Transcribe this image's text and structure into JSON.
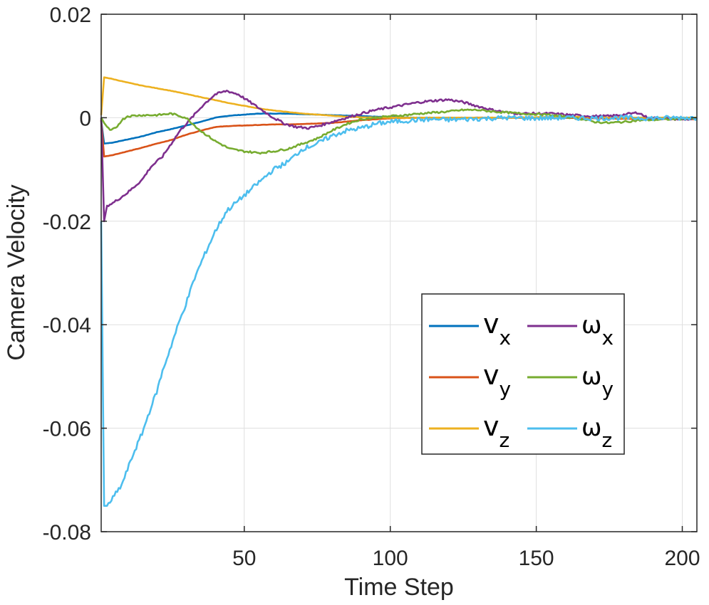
{
  "chart_data": {
    "type": "line",
    "title": "",
    "xlabel": "Time Step",
    "ylabel": "Camera Velocity",
    "xlim": [
      1,
      205
    ],
    "ylim": [
      -0.08,
      0.02
    ],
    "xticks": [
      50,
      100,
      150,
      200
    ],
    "xtick_labels": [
      "50",
      "100",
      "150",
      "200"
    ],
    "yticks": [
      0.02,
      0,
      -0.02,
      -0.04,
      -0.06,
      -0.08
    ],
    "ytick_labels": [
      "0.02",
      "0",
      "-0.02",
      "-0.04",
      "-0.06",
      "-0.08"
    ],
    "grid": true,
    "legend_position": "lower-right",
    "legend_columns": 2,
    "series": [
      {
        "name": "v_x",
        "symbol": "v",
        "subscript": "x",
        "color": "#0072BD",
        "points": [
          [
            1,
            -0.0005
          ],
          [
            2,
            -0.005
          ],
          [
            5,
            -0.0048
          ],
          [
            10,
            -0.0042
          ],
          [
            15,
            -0.0036
          ],
          [
            20,
            -0.0028
          ],
          [
            25,
            -0.0022
          ],
          [
            30,
            -0.0015
          ],
          [
            35,
            -0.0008
          ],
          [
            40,
            0.0
          ],
          [
            45,
            0.0004
          ],
          [
            50,
            0.0006
          ],
          [
            55,
            0.0008
          ],
          [
            60,
            0.0008
          ],
          [
            65,
            0.0008
          ],
          [
            70,
            0.0007
          ],
          [
            80,
            0.0005
          ],
          [
            90,
            0.0003
          ],
          [
            100,
            0.0001
          ],
          [
            110,
            0.0
          ],
          [
            120,
            0.0
          ],
          [
            130,
            0.0
          ],
          [
            140,
            0.0
          ],
          [
            150,
            0.0
          ],
          [
            160,
            0.0
          ],
          [
            170,
            0.0
          ],
          [
            180,
            0.0
          ],
          [
            190,
            0.0
          ],
          [
            200,
            0.0
          ],
          [
            205,
            0.0
          ]
        ]
      },
      {
        "name": "v_y",
        "symbol": "v",
        "subscript": "y",
        "color": "#D95319",
        "points": [
          [
            1,
            -0.0005
          ],
          [
            2,
            -0.0075
          ],
          [
            5,
            -0.0072
          ],
          [
            10,
            -0.0065
          ],
          [
            15,
            -0.0058
          ],
          [
            20,
            -0.005
          ],
          [
            25,
            -0.0043
          ],
          [
            30,
            -0.0033
          ],
          [
            35,
            -0.0025
          ],
          [
            40,
            -0.0018
          ],
          [
            45,
            -0.0016
          ],
          [
            50,
            -0.0015
          ],
          [
            55,
            -0.0014
          ],
          [
            60,
            -0.0013
          ],
          [
            65,
            -0.0013
          ],
          [
            70,
            -0.0012
          ],
          [
            80,
            -0.001
          ],
          [
            90,
            -0.0005
          ],
          [
            100,
            -0.0001
          ],
          [
            110,
            0.0
          ],
          [
            120,
            0.0
          ],
          [
            130,
            0.0
          ],
          [
            140,
            0.0
          ],
          [
            150,
            0.0
          ],
          [
            160,
            0.0
          ],
          [
            170,
            -0.0001
          ],
          [
            180,
            -0.0002
          ],
          [
            190,
            -0.0002
          ],
          [
            200,
            -0.0003
          ],
          [
            205,
            -0.0003
          ]
        ]
      },
      {
        "name": "v_z",
        "symbol": "v",
        "subscript": "z",
        "color": "#EDB120",
        "points": [
          [
            1,
            0.0005
          ],
          [
            2,
            0.0078
          ],
          [
            4,
            0.0076
          ],
          [
            10,
            0.0068
          ],
          [
            15,
            0.0062
          ],
          [
            20,
            0.0057
          ],
          [
            25,
            0.0052
          ],
          [
            30,
            0.0046
          ],
          [
            35,
            0.004
          ],
          [
            40,
            0.0034
          ],
          [
            45,
            0.0028
          ],
          [
            50,
            0.0023
          ],
          [
            55,
            0.0018
          ],
          [
            60,
            0.0014
          ],
          [
            65,
            0.0011
          ],
          [
            70,
            0.0008
          ],
          [
            75,
            0.0006
          ],
          [
            80,
            0.0004
          ],
          [
            85,
            0.0002
          ],
          [
            90,
            0.0001
          ],
          [
            100,
            0.0
          ],
          [
            110,
            0.0
          ],
          [
            120,
            0.0
          ],
          [
            130,
            0.0
          ],
          [
            140,
            0.0
          ],
          [
            150,
            0.0001
          ],
          [
            160,
            0.0002
          ],
          [
            170,
            0.0001
          ],
          [
            180,
            0.0
          ],
          [
            190,
            0.0
          ],
          [
            200,
            0.0
          ],
          [
            205,
            0.0
          ]
        ]
      },
      {
        "name": "omega_x",
        "symbol": "ω",
        "subscript": "x",
        "color": "#7E2F8E",
        "points": [
          [
            1,
            0.0
          ],
          [
            2,
            -0.02
          ],
          [
            3,
            -0.017
          ],
          [
            5,
            -0.0165
          ],
          [
            10,
            -0.0145
          ],
          [
            15,
            -0.012
          ],
          [
            18,
            -0.0095
          ],
          [
            22,
            -0.0075
          ],
          [
            25,
            -0.005
          ],
          [
            28,
            -0.0025
          ],
          [
            32,
            0.0
          ],
          [
            36,
            0.0025
          ],
          [
            40,
            0.0045
          ],
          [
            44,
            0.0052
          ],
          [
            48,
            0.0045
          ],
          [
            52,
            0.003
          ],
          [
            56,
            0.0015
          ],
          [
            60,
            0.0
          ],
          [
            64,
            -0.0012
          ],
          [
            68,
            -0.0018
          ],
          [
            72,
            -0.002
          ],
          [
            76,
            -0.0015
          ],
          [
            80,
            -0.0008
          ],
          [
            85,
            0.0
          ],
          [
            90,
            0.0008
          ],
          [
            95,
            0.0015
          ],
          [
            100,
            0.002
          ],
          [
            105,
            0.0025
          ],
          [
            110,
            0.003
          ],
          [
            115,
            0.0033
          ],
          [
            120,
            0.0035
          ],
          [
            125,
            0.003
          ],
          [
            130,
            0.0022
          ],
          [
            135,
            0.0015
          ],
          [
            140,
            0.001
          ],
          [
            145,
            0.0008
          ],
          [
            150,
            0.0008
          ],
          [
            155,
            0.0008
          ],
          [
            160,
            0.0006
          ],
          [
            165,
            0.0004
          ],
          [
            170,
            0.0003
          ],
          [
            175,
            0.0003
          ],
          [
            180,
            0.0006
          ],
          [
            185,
            0.001
          ],
          [
            188,
            0.0
          ],
          [
            195,
            -0.0002
          ],
          [
            200,
            -0.0003
          ],
          [
            205,
            -0.0003
          ]
        ]
      },
      {
        "name": "omega_y",
        "symbol": "ω",
        "subscript": "y",
        "color": "#77AC30",
        "points": [
          [
            1,
            0.0
          ],
          [
            2,
            -0.001
          ],
          [
            4,
            -0.0025
          ],
          [
            6,
            -0.002
          ],
          [
            8,
            -0.0005
          ],
          [
            10,
            0.0003
          ],
          [
            15,
            0.0005
          ],
          [
            20,
            0.0005
          ],
          [
            25,
            0.0008
          ],
          [
            30,
            0.0
          ],
          [
            35,
            -0.0025
          ],
          [
            40,
            -0.0045
          ],
          [
            45,
            -0.006
          ],
          [
            50,
            -0.0065
          ],
          [
            55,
            -0.0068
          ],
          [
            60,
            -0.0065
          ],
          [
            65,
            -0.006
          ],
          [
            70,
            -0.005
          ],
          [
            75,
            -0.004
          ],
          [
            80,
            -0.0025
          ],
          [
            85,
            -0.0012
          ],
          [
            90,
            -0.0003
          ],
          [
            95,
            0.0
          ],
          [
            100,
            0.0003
          ],
          [
            105,
            0.0005
          ],
          [
            110,
            0.0008
          ],
          [
            115,
            0.001
          ],
          [
            120,
            0.0012
          ],
          [
            125,
            0.0015
          ],
          [
            130,
            0.0015
          ],
          [
            135,
            0.0012
          ],
          [
            140,
            0.001
          ],
          [
            145,
            0.0008
          ],
          [
            150,
            0.0007
          ],
          [
            155,
            0.0005
          ],
          [
            160,
            0.0002
          ],
          [
            165,
            -0.0002
          ],
          [
            170,
            -0.0008
          ],
          [
            175,
            -0.001
          ],
          [
            180,
            -0.0008
          ],
          [
            185,
            -0.0005
          ],
          [
            190,
            -0.0004
          ],
          [
            195,
            -0.0003
          ],
          [
            200,
            -0.0002
          ],
          [
            205,
            -0.0001
          ]
        ]
      },
      {
        "name": "omega_z",
        "symbol": "ω",
        "subscript": "z",
        "color": "#4DBEEE",
        "points": [
          [
            1,
            -0.02
          ],
          [
            2,
            -0.075
          ],
          [
            3,
            -0.075
          ],
          [
            5,
            -0.0735
          ],
          [
            8,
            -0.071
          ],
          [
            10,
            -0.068
          ],
          [
            12,
            -0.065
          ],
          [
            15,
            -0.061
          ],
          [
            18,
            -0.056
          ],
          [
            20,
            -0.053
          ],
          [
            22,
            -0.049
          ],
          [
            25,
            -0.044
          ],
          [
            28,
            -0.039
          ],
          [
            30,
            -0.036
          ],
          [
            33,
            -0.031
          ],
          [
            36,
            -0.027
          ],
          [
            40,
            -0.022
          ],
          [
            44,
            -0.018
          ],
          [
            48,
            -0.016
          ],
          [
            52,
            -0.014
          ],
          [
            56,
            -0.012
          ],
          [
            60,
            -0.01
          ],
          [
            65,
            -0.0085
          ],
          [
            70,
            -0.006
          ],
          [
            75,
            -0.005
          ],
          [
            80,
            -0.0035
          ],
          [
            85,
            -0.0025
          ],
          [
            90,
            -0.002
          ],
          [
            95,
            -0.0012
          ],
          [
            100,
            -0.0008
          ],
          [
            105,
            -0.0006
          ],
          [
            110,
            -0.0004
          ],
          [
            115,
            -0.0003
          ],
          [
            120,
            -0.0004
          ],
          [
            125,
            -0.0003
          ],
          [
            130,
            -0.0002
          ],
          [
            135,
            -0.0001
          ],
          [
            140,
            0.0
          ],
          [
            150,
            -0.0001
          ],
          [
            160,
            0.0
          ],
          [
            170,
            -0.0001
          ],
          [
            180,
            0.0
          ],
          [
            190,
            -0.0001
          ],
          [
            200,
            0.0
          ],
          [
            205,
            0.0
          ]
        ]
      }
    ]
  }
}
